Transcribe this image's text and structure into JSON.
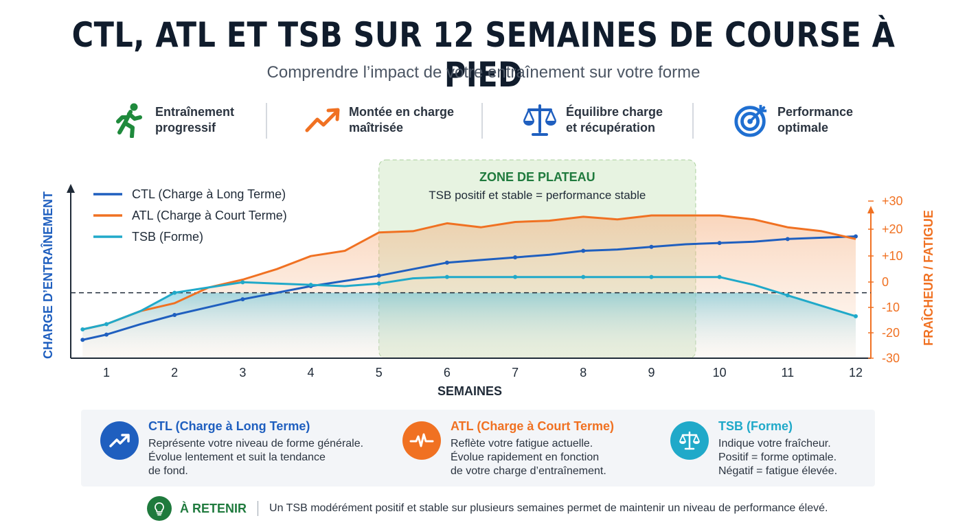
{
  "header": {
    "title": "CTL, ATL ET TSB SUR 12 SEMAINES DE COURSE À PIED",
    "subtitle": "Comprendre l’impact de votre entraînement sur votre forme"
  },
  "features": [
    {
      "icon": "runner-icon",
      "line1": "Entraînement",
      "line2": "progressif",
      "color": "#1f8a3c"
    },
    {
      "icon": "trend-up-icon",
      "line1": "Montée en charge",
      "line2": "maîtrisée",
      "color": "#f07122"
    },
    {
      "icon": "balance-scale-icon",
      "line1": "Équilibre charge",
      "line2": "et récupération",
      "color": "#1f5fbf"
    },
    {
      "icon": "target-icon",
      "line1": "Performance",
      "line2": "optimale",
      "color": "#1f6fd1"
    }
  ],
  "chart_data": {
    "type": "line",
    "x": [
      0.65,
      1,
      1.5,
      2,
      2.5,
      3,
      3.5,
      4,
      4.5,
      5,
      5.5,
      6,
      6.5,
      7,
      7.5,
      8,
      8.5,
      9,
      9.5,
      10,
      10.5,
      11,
      11.5,
      12
    ],
    "series": [
      {
        "name": "CTL (Charge à Long Terme)",
        "color": "#1f5fbf",
        "axis": "left",
        "values": [
          -23,
          -21,
          -17,
          -13.5,
          -10.5,
          -7.5,
          -5,
          -2.5,
          -0.5,
          1.5,
          4,
          6.5,
          7.5,
          8.5,
          9.5,
          11,
          11.5,
          12.5,
          13.5,
          14,
          14.5,
          15.5,
          16,
          16.5
        ]
      },
      {
        "name": "ATL (Charge à Court Terme)",
        "color": "#f07122",
        "axis": "left",
        "values": [
          -19,
          -17,
          -12,
          -9,
          -3,
          0,
          4,
          9,
          11,
          18,
          18.5,
          21.5,
          20,
          22,
          22.5,
          24,
          23,
          24.5,
          24.5,
          24.5,
          23,
          20,
          18.5,
          15.5
        ]
      },
      {
        "name": "TSB (Forme)",
        "color": "#20a9c9",
        "axis": "right",
        "values": [
          -19,
          -17,
          -12,
          -5,
          -3,
          -1,
          -1.5,
          -2,
          -2.5,
          -1.5,
          0.5,
          1,
          1,
          1,
          1,
          1,
          1,
          1,
          1,
          1,
          -2,
          -6,
          -10,
          -14
        ]
      }
    ],
    "x_ticks": [
      "1",
      "2",
      "3",
      "4",
      "5",
      "6",
      "7",
      "8",
      "9",
      "10",
      "11",
      "12"
    ],
    "xlabel": "SEMAINES",
    "ylabel": "CHARGE D’ENTRAÎNEMENT",
    "y2label": "FRAÎCHEUR / FATIGUE",
    "y2_ticks": [
      "+30",
      "+20",
      "+10",
      "0",
      "-10",
      "-20",
      "-30"
    ],
    "ylim": [
      -30,
      30
    ],
    "zero_line_value": -5,
    "plateau": {
      "x_range": [
        5,
        9.65
      ],
      "title": "ZONE DE PLATEAU",
      "subtitle": "TSB positif et stable = performance stable",
      "color": "#1f7a3d"
    },
    "legend_position": "top-left",
    "grid": false
  },
  "cards": [
    {
      "title": "CTL (Charge à Long Terme)",
      "color": "#1f5fbf",
      "icon": "trend-up-icon",
      "lines": [
        "Représente votre niveau de forme générale.",
        "Évolue lentement et suit la tendance",
        "de fond."
      ]
    },
    {
      "title": "ATL (Charge à Court Terme)",
      "color": "#f07122",
      "icon": "heartbeat-icon",
      "lines": [
        "Reflète votre fatigue actuelle.",
        "Évolue rapidement en fonction",
        "de votre charge d’entraînement."
      ]
    },
    {
      "title": "TSB (Forme)",
      "color": "#20a9c9",
      "icon": "balance-scale-icon",
      "lines": [
        "Indique votre fraîcheur.",
        "Positif = forme optimale.",
        "Négatif = fatigue élevée."
      ]
    }
  ],
  "retain": {
    "label": "À RETENIR",
    "text": "Un TSB modérément positif et stable sur plusieurs semaines permet de maintenir un niveau de performance élevé.",
    "icon": "lightbulb-icon",
    "color": "#1f7a3d"
  }
}
